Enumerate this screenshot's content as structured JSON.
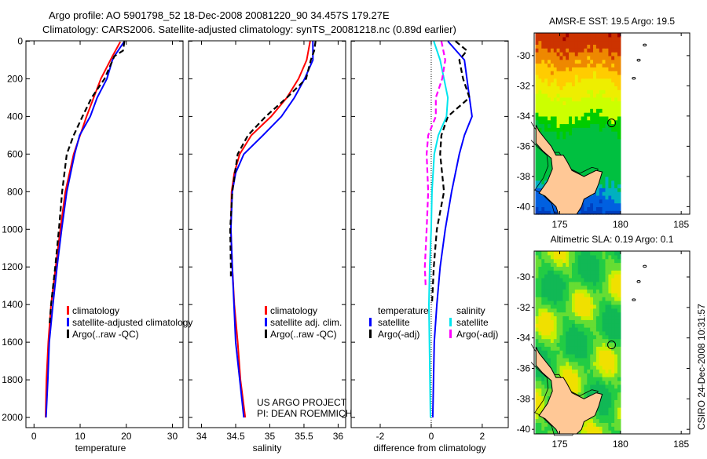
{
  "header": {
    "line1": "Argo profile: AO 5901798_52 18-Dec-2008 20081220_90 34.457S 179.27E",
    "line2": "Climatology: CARS2006. Satellite-adjusted climatology: synTS_20081218.nc (0.89d earlier)"
  },
  "credits": {
    "project": "US ARGO PROJECT",
    "pi": "PI: DEAN ROEMMICH",
    "stamp": "CSIRO 24-Dec-2008 10:31:57"
  },
  "colors": {
    "red": "#ff0000",
    "blue": "#0000ff",
    "black": "#000000",
    "cyan": "#00e5ee",
    "magenta": "#ff00ff",
    "land": "#ffc896"
  },
  "chart_data": [
    {
      "type": "line",
      "title": "",
      "xlabel": "temperature",
      "ylabel": "",
      "xlim": [
        -1.75,
        32.3
      ],
      "ylim": [
        2054,
        -2
      ],
      "xticks": [
        "0",
        "10",
        "20",
        "30"
      ],
      "xtick_values": [
        0,
        10,
        20,
        30
      ],
      "yticks": [
        "0",
        "200",
        "400",
        "600",
        "800",
        "1000",
        "1200",
        "1400",
        "1600",
        "1800",
        "2000"
      ],
      "ytick_values": [
        0,
        200,
        400,
        600,
        800,
        1000,
        1200,
        1400,
        1600,
        1800,
        2000
      ],
      "legend": [
        "climatology",
        "satellite-adjusted climatology",
        "Argo(..raw -QC)"
      ],
      "series": [
        {
          "name": "climatology",
          "color": "#ff0000",
          "dash": false,
          "depth": [
            4,
            80,
            200,
            400,
            600,
            800,
            1000,
            1200,
            1400,
            1600,
            1800,
            2000
          ],
          "values": [
            18.7,
            17.0,
            14.5,
            11.4,
            8.6,
            6.8,
            5.7,
            4.7,
            3.7,
            3.1,
            2.7,
            2.5
          ]
        },
        {
          "name": "satellite-adjusted climatology",
          "color": "#0000ff",
          "dash": false,
          "depth": [
            0,
            80,
            100,
            200,
            300,
            400,
            500,
            600,
            800,
            1000,
            1200,
            1400,
            1600,
            1800,
            2000
          ],
          "values": [
            19.6,
            17.4,
            17.0,
            15.8,
            13.7,
            12.2,
            9.9,
            8.8,
            7.1,
            6.0,
            5.0,
            4.1,
            3.3,
            3.0,
            2.6
          ]
        },
        {
          "name": "Argo(..raw -QC)",
          "color": "#000000",
          "dash": true,
          "depth": [
            0,
            50,
            80,
            200,
            300,
            400,
            500,
            600,
            800,
            1000,
            1200,
            1400,
            1500
          ],
          "values": [
            19.6,
            19.3,
            17.4,
            15.3,
            12.5,
            10.5,
            8.6,
            7.1,
            6.1,
            5.4,
            4.6,
            3.7,
            3.4
          ]
        }
      ]
    },
    {
      "type": "line",
      "title": "",
      "xlabel": "salinity",
      "ylabel": "",
      "xlim": [
        33.81,
        36.11
      ],
      "ylim": [
        2054,
        -2
      ],
      "xticks": [
        "34",
        "34.5",
        "35",
        "35.5",
        "36"
      ],
      "xtick_values": [
        34,
        34.5,
        35,
        35.5,
        36
      ],
      "ytick_values": [
        0,
        200,
        400,
        600,
        800,
        1000,
        1200,
        1400,
        1600,
        1800,
        2000
      ],
      "legend": [
        "climatology",
        "satellite adj. clim.",
        "Argo(..raw -QC)"
      ],
      "series": [
        {
          "name": "climatology",
          "color": "#ff0000",
          "dash": false,
          "depth": [
            0,
            100,
            200,
            300,
            400,
            500,
            600,
            700,
            800,
            1000,
            1200,
            1400,
            1600,
            1800,
            2000
          ],
          "values": [
            35.59,
            35.54,
            35.42,
            35.25,
            35.02,
            34.73,
            34.56,
            34.48,
            34.44,
            34.43,
            34.45,
            34.48,
            34.53,
            34.57,
            34.64
          ]
        },
        {
          "name": "satellite adj. clim.",
          "color": "#0000ff",
          "dash": false,
          "depth": [
            0,
            100,
            200,
            300,
            400,
            500,
            600,
            700,
            800,
            1000,
            1200,
            1600,
            2000
          ],
          "values": [
            35.63,
            35.63,
            35.51,
            35.36,
            35.17,
            34.9,
            34.62,
            34.5,
            34.45,
            34.43,
            34.45,
            34.5,
            34.62
          ]
        },
        {
          "name": "Argo(..raw -QC)",
          "color": "#000000",
          "dash": true,
          "depth": [
            0,
            50,
            100,
            200,
            300,
            400,
            500,
            600,
            700,
            800,
            1000,
            1200,
            1250
          ],
          "values": [
            35.67,
            35.65,
            35.6,
            35.53,
            35.25,
            34.94,
            34.68,
            34.53,
            34.49,
            34.45,
            34.42,
            34.43,
            34.43
          ]
        }
      ]
    },
    {
      "type": "line",
      "title": "",
      "xlabel": "difference from climatology",
      "ylabel": "",
      "xlim": [
        -3.14,
        3.02
      ],
      "ylim": [
        2054,
        -2
      ],
      "xticks": [
        "-2",
        "0",
        "2"
      ],
      "xtick_values": [
        -2,
        0,
        2
      ],
      "ytick_values": [
        0,
        200,
        400,
        600,
        800,
        1000,
        1200,
        1400,
        1600,
        1800,
        2000
      ],
      "legend_groups": [
        {
          "heading": "temperature",
          "items": [
            "satellite",
            "Argo(-adj)"
          ]
        },
        {
          "heading": "salinity",
          "items": [
            "satellite",
            "Argo(-adj)"
          ]
        }
      ],
      "series": [
        {
          "name": "temperature satellite",
          "color": "#0000ff",
          "dash": false,
          "depth": [
            0,
            100,
            300,
            400,
            500,
            600,
            800,
            1000,
            1200,
            1400,
            1600,
            2000
          ],
          "values": [
            0.65,
            1.3,
            1.5,
            1.6,
            1.3,
            1.1,
            0.8,
            0.55,
            0.35,
            0.22,
            0.12,
            0.06
          ]
        },
        {
          "name": "temperature Argo(-adj)",
          "color": "#000000",
          "dash": true,
          "depth": [
            0,
            50,
            100,
            200,
            300,
            400,
            500,
            600,
            800,
            1000,
            1200,
            1400
          ],
          "values": [
            0.95,
            1.4,
            1.1,
            1.25,
            1.5,
            0.65,
            0.4,
            0.35,
            0.5,
            0.22,
            0.1,
            0.03
          ]
        },
        {
          "name": "salinity satellite",
          "color": "#00e5ee",
          "dash": false,
          "depth": [
            0,
            100,
            200,
            300,
            400,
            500,
            600,
            800,
            1000,
            1200,
            1400,
            2000
          ],
          "values": [
            0.1,
            0.35,
            0.5,
            0.65,
            0.6,
            0.28,
            0.12,
            0.03,
            0.0,
            -0.06,
            -0.09,
            -0.03
          ]
        },
        {
          "name": "salinity Argo(-adj)",
          "color": "#ff00ff",
          "dash": true,
          "depth": [
            0,
            100,
            200,
            300,
            400,
            500,
            600,
            800,
            1000,
            1200,
            1300
          ],
          "values": [
            0.4,
            0.55,
            0.43,
            0.18,
            0.18,
            -0.12,
            -0.18,
            -0.12,
            -0.18,
            -0.25,
            -0.22
          ]
        }
      ],
      "zero_line": 0
    },
    {
      "type": "heatmap",
      "title": "AMSR-E SST: 19.5 Argo: 19.5",
      "xticks": [
        "175",
        "180",
        "185"
      ],
      "xtick_values": [
        175,
        180,
        185
      ],
      "yticks": [
        "-30",
        "-32",
        "-34",
        "-36",
        "-38",
        "-40"
      ],
      "ytick_values": [
        -30,
        -32,
        -34,
        -36,
        -38,
        -40
      ],
      "xlim": [
        172.9,
        185.7
      ],
      "ylim": [
        -40.5,
        -28.5
      ],
      "argo_position": {
        "lon": 179.27,
        "lat": -34.457
      }
    },
    {
      "type": "heatmap",
      "title": "Altimetric SLA: 0.19 Argo: 0.1",
      "xticks": [
        "175",
        "180",
        "185"
      ],
      "xtick_values": [
        175,
        180,
        185
      ],
      "yticks": [
        "-30",
        "-32",
        "-34",
        "-36",
        "-38",
        "-40"
      ],
      "ytick_values": [
        -30,
        -32,
        -34,
        -36,
        -38,
        -40
      ],
      "xlim": [
        172.9,
        185.7
      ],
      "ylim": [
        -40.3,
        -28.3
      ],
      "argo_position": {
        "lon": 179.27,
        "lat": -34.457
      }
    }
  ]
}
